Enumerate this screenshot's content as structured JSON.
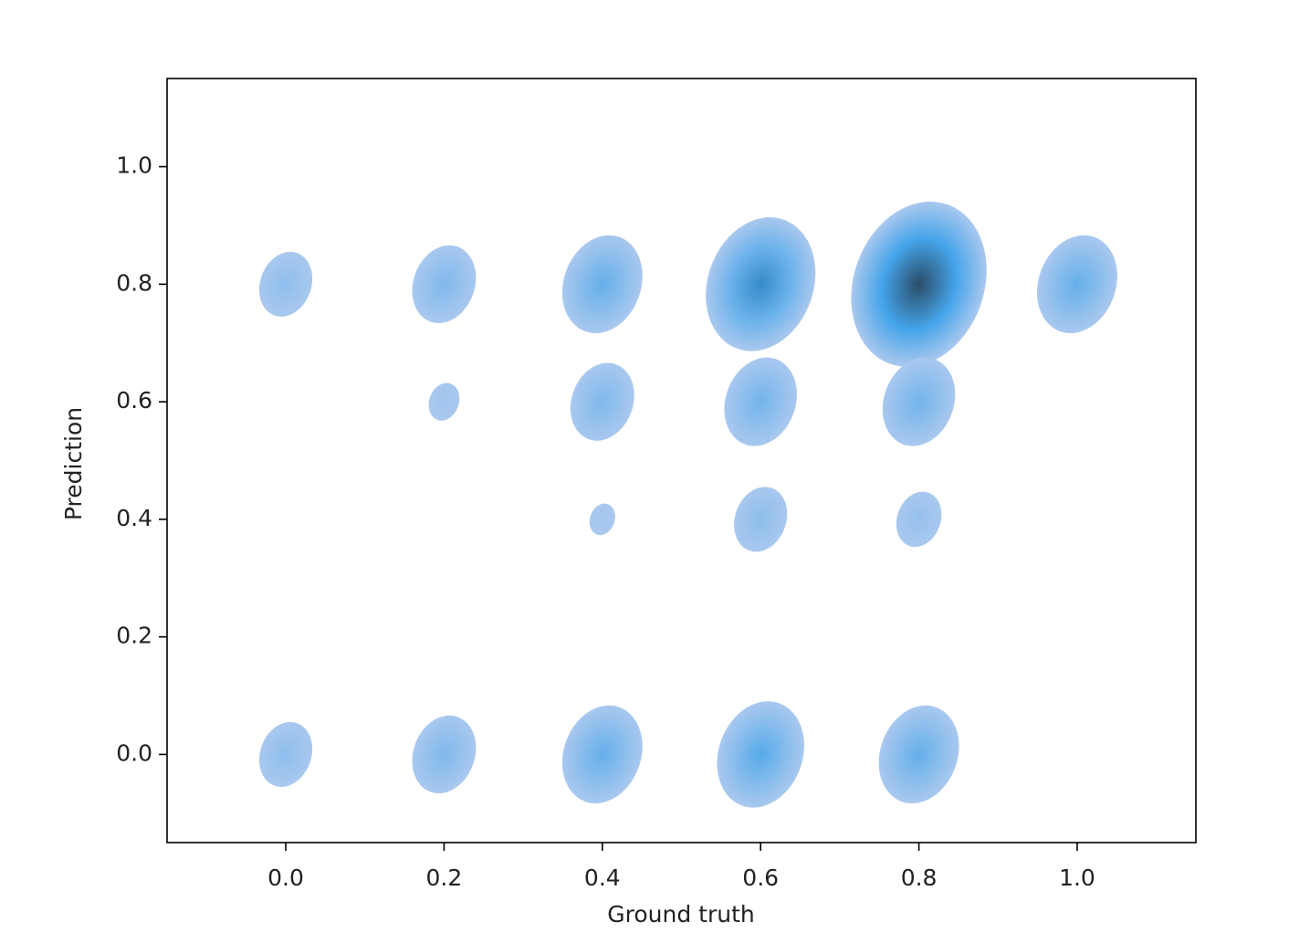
{
  "chart_data": {
    "type": "kde",
    "x_label": "Ground truth",
    "y_label": "Prediction",
    "x": [
      0,
      0.2,
      0.4,
      0.6,
      0.8,
      1.0,
      0.2,
      0.4,
      0.6,
      0.8,
      0.4,
      0.6,
      0.8,
      0,
      0.2,
      0.4,
      0.6,
      0.8
    ],
    "y": [
      0.8,
      0.8,
      0.8,
      0.8,
      0.8,
      0.8,
      0.6,
      0.6,
      0.6,
      0.6,
      0.4,
      0.4,
      0.4,
      0,
      0,
      0,
      0,
      0
    ],
    "weights": [
      1,
      1.5,
      2.5,
      5,
      8,
      2.5,
      0.3,
      1.5,
      2,
      2,
      0.2,
      1,
      0.7,
      1,
      1.5,
      2.5,
      3,
      2.5
    ],
    "colors": [
      "#a9c8ee",
      "#3aa0e8",
      "#2a4d68"
    ],
    "xlim": [
      -0.15,
      1.15
    ],
    "ylim": [
      -0.15,
      1.15
    ],
    "xticks": [
      {
        "value": 0,
        "label": "0.0"
      },
      0.2,
      0.4,
      0.6,
      0.8,
      {
        "value": 1,
        "label": "1.0"
      }
    ],
    "yticks": [
      {
        "value": 0,
        "label": "0.0"
      },
      0.2,
      0.4,
      0.6,
      0.8,
      {
        "value": 1,
        "label": "1.0"
      }
    ]
  }
}
